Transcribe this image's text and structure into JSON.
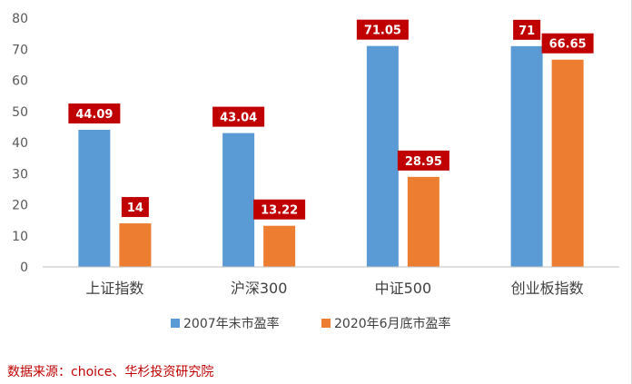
{
  "chart_data": {
    "type": "bar",
    "title": "",
    "xlabel": "",
    "ylabel": "",
    "categories": [
      "上证指数",
      "沪深300",
      "中证500",
      "创业板指数"
    ],
    "series": [
      {
        "name": "2007年末市盈率",
        "values": [
          44.09,
          43.04,
          71.05,
          71
        ],
        "labels": [
          "44.09",
          "43.04",
          "71.05",
          "71"
        ],
        "color": "#5b9bd5"
      },
      {
        "name": "2020年6月底市盈率",
        "values": [
          14,
          13.22,
          28.95,
          66.65
        ],
        "labels": [
          "14",
          "13.22",
          "28.95",
          "66.65"
        ],
        "color": "#ed7d31"
      }
    ],
    "ylim": [
      0,
      80
    ],
    "yticks": [
      0,
      10,
      20,
      30,
      40,
      50,
      60,
      70,
      80
    ],
    "grid": false,
    "legend_position": "bottom",
    "data_label_background": "#c00000",
    "data_label_text_color": "#ffffff"
  },
  "source_note": "数据来源：choice、华杉投资研究院"
}
